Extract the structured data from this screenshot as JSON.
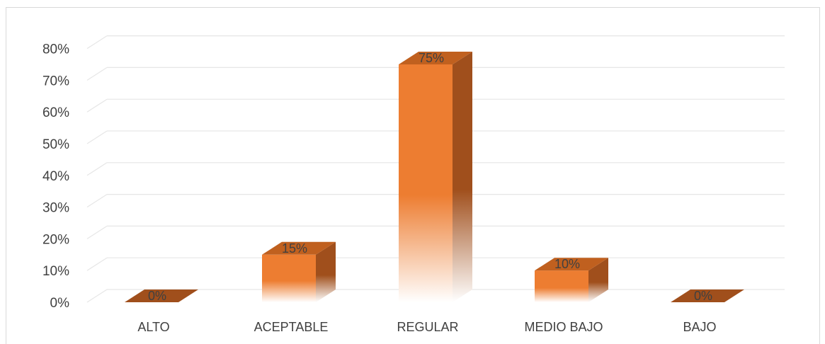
{
  "chart_data": {
    "type": "bar",
    "style": "3d-column",
    "categories": [
      "ALTO",
      "ACEPTABLE",
      "REGULAR",
      "MEDIO BAJO",
      "BAJO"
    ],
    "values": [
      0,
      15,
      75,
      10,
      0
    ],
    "data_labels": [
      "0%",
      "15%",
      "75%",
      "10%",
      "0%"
    ],
    "yticks": [
      "0%",
      "10%",
      "20%",
      "30%",
      "40%",
      "50%",
      "60%",
      "70%",
      "80%"
    ],
    "ylim": [
      0,
      80
    ],
    "title": "",
    "xlabel": "",
    "ylabel": "",
    "grid": true,
    "legend": "none",
    "colors": {
      "front": "#ed7d31",
      "side": "#a04f1c",
      "top": "#c0601f",
      "grid": "#e6e6e6",
      "frame": "#d9d9d9"
    }
  }
}
